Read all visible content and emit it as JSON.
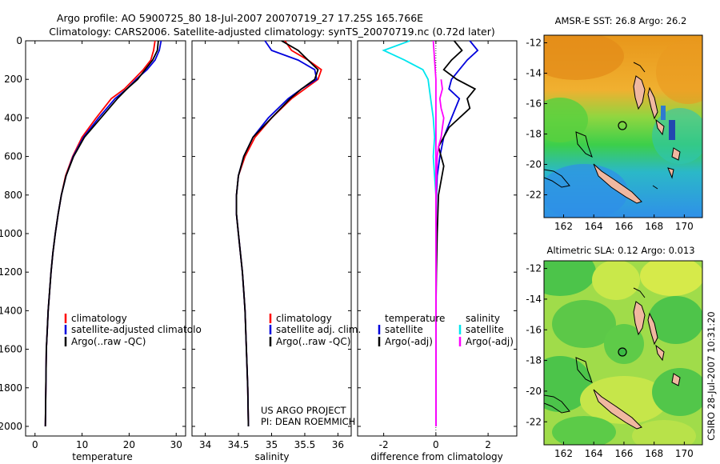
{
  "figure": {
    "title_line1": "Argo profile: AO 5900725_80 18-Jul-2007 20070719_27 17.25S 165.766E",
    "title_line2": "Climatology: CARS2006. Satellite-adjusted climatology: synTS_20070719.nc (0.72d later)",
    "side_label": "CSIRO 28-Jul-2007 10:31:20",
    "credit_line1": "US ARGO PROJECT",
    "credit_line2": "PI: DEAN ROEMMICH"
  },
  "colors": {
    "climatology": "#ff0000",
    "satellite": "#0000dd",
    "argo": "#000000",
    "sal_satellite": "#00e5ee",
    "sal_argo": "#ff00ff"
  },
  "chart_data": [
    {
      "type": "line",
      "id": "temperature",
      "xlabel": "temperature",
      "ylabel": "",
      "xlim": [
        -2,
        32
      ],
      "ylim": [
        2050,
        0
      ],
      "xticks": [
        0,
        10,
        20,
        30
      ],
      "yticks": [
        0,
        200,
        400,
        600,
        800,
        1000,
        1200,
        1400,
        1600,
        1800,
        2000
      ],
      "series": [
        {
          "name": "climatology",
          "color": "#ff0000",
          "x": [
            25.5,
            25.2,
            24.6,
            23.0,
            21.0,
            19.0,
            16.2,
            13.0,
            10.0,
            8.0,
            6.5,
            5.6,
            4.9,
            4.3,
            3.8,
            3.4,
            3.1,
            2.8,
            2.6,
            2.4,
            2.3,
            2.2
          ],
          "y": [
            0,
            50,
            100,
            150,
            200,
            250,
            300,
            400,
            500,
            600,
            700,
            800,
            900,
            1000,
            1100,
            1200,
            1300,
            1400,
            1500,
            1600,
            1800,
            2000
          ]
        },
        {
          "name": "satellite-adjusted climatology",
          "color": "#0000dd",
          "x": [
            26.8,
            26.4,
            25.5,
            23.8,
            21.5,
            19.5,
            17.0,
            13.5,
            10.3,
            8.1,
            6.6,
            5.6,
            4.9,
            4.3,
            3.8,
            3.4,
            3.1,
            2.8,
            2.6,
            2.4,
            2.3,
            2.2
          ],
          "y": [
            0,
            50,
            100,
            150,
            200,
            250,
            300,
            400,
            500,
            600,
            700,
            800,
            900,
            1000,
            1100,
            1200,
            1300,
            1400,
            1500,
            1600,
            1800,
            2000
          ]
        },
        {
          "name": "Argo(..raw -QC)",
          "color": "#000000",
          "x": [
            26.2,
            26.0,
            25.0,
            23.4,
            21.8,
            19.5,
            17.5,
            14.0,
            10.5,
            8.2,
            6.6,
            5.6,
            4.9,
            4.3,
            3.8,
            3.4,
            3.1,
            2.8,
            2.6,
            2.4,
            2.3,
            2.2
          ],
          "y": [
            0,
            50,
            100,
            150,
            200,
            250,
            300,
            400,
            500,
            600,
            700,
            800,
            900,
            1000,
            1100,
            1200,
            1300,
            1400,
            1500,
            1600,
            1800,
            2000
          ]
        }
      ],
      "legend": [
        "climatology",
        "satellite-adjusted climatolo",
        "Argo(..raw -QC)"
      ]
    },
    {
      "type": "line",
      "id": "salinity",
      "xlabel": "salinity",
      "xlim": [
        33.8,
        36.2
      ],
      "ylim": [
        2050,
        0
      ],
      "xticks": [
        34,
        34.5,
        35,
        35.5,
        36
      ],
      "xticklabels": [
        "34",
        "34.5",
        "35",
        "35.5",
        "36"
      ],
      "series": [
        {
          "name": "climatology",
          "color": "#ff0000",
          "x": [
            35.2,
            35.3,
            35.55,
            35.75,
            35.7,
            35.5,
            35.3,
            35.0,
            34.75,
            34.6,
            34.5,
            34.47,
            34.47,
            34.5,
            34.53,
            34.56,
            34.58,
            34.6,
            34.62,
            34.64,
            34.65
          ],
          "y": [
            0,
            50,
            100,
            150,
            200,
            250,
            300,
            400,
            500,
            600,
            700,
            800,
            900,
            1000,
            1100,
            1200,
            1300,
            1400,
            1600,
            1800,
            2000
          ]
        },
        {
          "name": "satellite adj. clim.",
          "color": "#0000dd",
          "x": [
            34.9,
            35.0,
            35.4,
            35.65,
            35.68,
            35.45,
            35.25,
            34.95,
            34.72,
            34.58,
            34.5,
            34.47,
            34.47,
            34.5,
            34.53,
            34.56,
            34.58,
            34.6,
            34.62,
            34.64,
            34.65
          ],
          "y": [
            0,
            50,
            100,
            150,
            200,
            250,
            300,
            400,
            500,
            600,
            700,
            800,
            900,
            1000,
            1100,
            1200,
            1300,
            1400,
            1600,
            1800,
            2000
          ]
        },
        {
          "name": "Argo(..raw -QC)",
          "color": "#000000",
          "x": [
            35.15,
            35.4,
            35.55,
            35.7,
            35.65,
            35.45,
            35.28,
            35.0,
            34.72,
            34.58,
            34.5,
            34.47,
            34.47,
            34.5,
            34.53,
            34.56,
            34.58,
            34.6,
            34.62,
            34.64,
            34.65
          ],
          "y": [
            0,
            50,
            100,
            150,
            200,
            250,
            300,
            400,
            500,
            600,
            700,
            800,
            900,
            1000,
            1100,
            1200,
            1300,
            1400,
            1600,
            1800,
            2000
          ]
        }
      ],
      "legend": [
        "climatology",
        "satellite adj. clim.",
        "Argo(..raw -QC)"
      ]
    },
    {
      "type": "line",
      "id": "difference",
      "xlabel": "difference from climatology",
      "xlim": [
        -3,
        3.1
      ],
      "ylim": [
        2050,
        0
      ],
      "xticks": [
        -2,
        0,
        2
      ],
      "series": [
        {
          "name": "temperature satellite",
          "color": "#0000dd",
          "x": [
            1.3,
            1.6,
            1.2,
            0.9,
            0.6,
            0.5,
            0.9,
            0.6,
            0.3,
            0.15,
            0.05,
            0.02,
            0.0,
            0.0,
            0.0,
            0.0,
            0.0,
            0.0
          ],
          "y": [
            0,
            50,
            100,
            150,
            200,
            250,
            300,
            400,
            500,
            600,
            700,
            800,
            1000,
            1200,
            1400,
            1600,
            1800,
            2000
          ]
        },
        {
          "name": "temperature Argo(-adj)",
          "color": "#000000",
          "x": [
            0.7,
            1.0,
            0.6,
            0.3,
            0.8,
            1.5,
            1.2,
            1.3,
            0.5,
            0.1,
            0.3,
            0.1,
            0.05,
            0.02,
            0.0,
            0.0,
            0.0,
            0.0
          ],
          "y": [
            0,
            50,
            100,
            150,
            200,
            250,
            300,
            350,
            450,
            550,
            650,
            800,
            1000,
            1200,
            1400,
            1600,
            1800,
            2000
          ]
        },
        {
          "name": "salinity satellite",
          "color": "#00e5ee",
          "x": [
            -1.0,
            -2.0,
            -1.2,
            -0.5,
            -0.3,
            -0.2,
            -0.1,
            -0.05,
            -0.1,
            -0.05,
            0.0,
            0.0,
            0.0,
            0.0,
            0.0,
            0.0,
            0.0,
            0.0
          ],
          "y": [
            0,
            50,
            100,
            150,
            200,
            300,
            400,
            500,
            600,
            700,
            800,
            1000,
            1100,
            1200,
            1400,
            1600,
            1800,
            2000
          ]
        },
        {
          "name": "salinity Argo(-adj)",
          "color": "#ff00ff",
          "x": [
            -0.1,
            -0.05,
            0.0,
            0.0,
            0.0,
            0.0,
            0.0,
            0.0
          ],
          "y": [
            0,
            100,
            200,
            400,
            600,
            800,
            1000,
            2000
          ]
        },
        {
          "name": "salinity Argo(-adj)",
          "color": "#ff00ff",
          "x": [
            0.2,
            0.25,
            0.15,
            0.2,
            0.3,
            0.25,
            0.2,
            0.1,
            0.05,
            0.0,
            0.0,
            0.0,
            0.0
          ],
          "y": [
            200,
            250,
            300,
            350,
            400,
            450,
            500,
            550,
            600,
            800,
            1000,
            1200,
            2000
          ]
        }
      ],
      "legend_temperature_title": "temperature",
      "legend_salinity_title": "salinity",
      "legend": [
        "satellite",
        "Argo(-adj)",
        "satellite",
        "Argo(-adj)"
      ]
    },
    {
      "type": "heatmap",
      "id": "sst-map",
      "title": "AMSR-E SST: 26.8 Argo: 26.2",
      "xlim": [
        160.7,
        171.2
      ],
      "ylim": [
        -23.5,
        -11.5
      ],
      "xticks": [
        162,
        164,
        166,
        168,
        170
      ],
      "yticks": [
        -12,
        -14,
        -16,
        -18,
        -20,
        -22
      ],
      "float_position": [
        165.766,
        -17.25
      ]
    },
    {
      "type": "heatmap",
      "id": "sla-map",
      "title": "Altimetric SLA: 0.12 Argo: 0.013",
      "xlim": [
        160.7,
        171.2
      ],
      "ylim": [
        -23.5,
        -11.5
      ],
      "xticks": [
        162,
        164,
        166,
        168,
        170
      ],
      "yticks": [
        -12,
        -14,
        -16,
        -18,
        -20,
        -22
      ],
      "float_position": [
        165.766,
        -17.25
      ]
    }
  ]
}
